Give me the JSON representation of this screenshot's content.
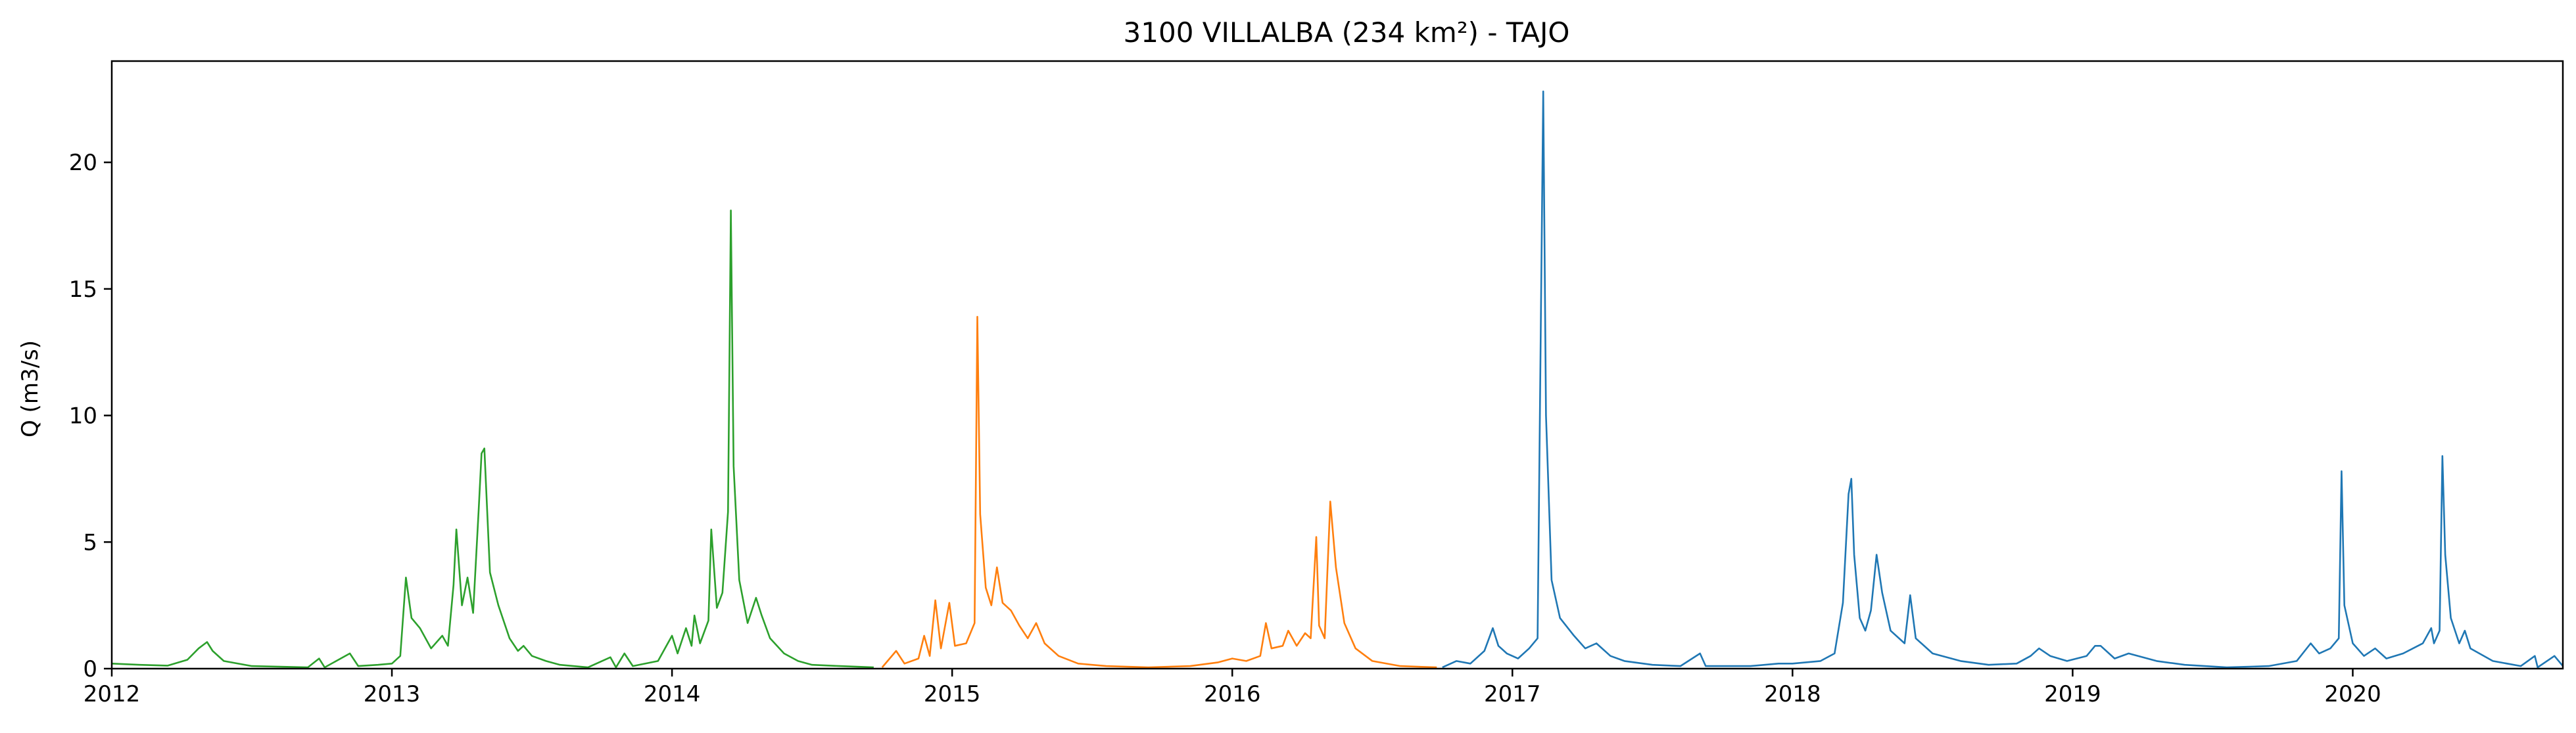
{
  "chart_data": {
    "type": "line",
    "title": "3100 VILLALBA (234 km²) - TAJO",
    "xlabel": "",
    "ylabel": "Q (m3/s)",
    "xlim": [
      2012.0,
      2020.75
    ],
    "ylim": [
      0,
      24
    ],
    "x_ticks": [
      2012,
      2013,
      2014,
      2015,
      2016,
      2017,
      2018,
      2019,
      2020
    ],
    "x_tick_labels": [
      "2012",
      "2013",
      "2014",
      "2015",
      "2016",
      "2017",
      "2018",
      "2019",
      "2020"
    ],
    "y_ticks": [
      0,
      5,
      10,
      15,
      20
    ],
    "y_tick_labels": [
      "0",
      "5",
      "10",
      "15",
      "20"
    ],
    "grid": false,
    "series": [
      {
        "color": "#2ca02c",
        "points": [
          [
            2012.0,
            0.2
          ],
          [
            2012.1,
            0.15
          ],
          [
            2012.2,
            0.12
          ],
          [
            2012.27,
            0.35
          ],
          [
            2012.31,
            0.8
          ],
          [
            2012.34,
            1.05
          ],
          [
            2012.36,
            0.7
          ],
          [
            2012.4,
            0.3
          ],
          [
            2012.5,
            0.1
          ],
          [
            2012.7,
            0.05
          ],
          [
            2012.74,
            0.4
          ],
          [
            2012.76,
            0.05
          ],
          [
            2012.85,
            0.6
          ],
          [
            2012.88,
            0.1
          ],
          [
            2012.95,
            0.15
          ],
          [
            2013.0,
            0.2
          ],
          [
            2013.03,
            0.5
          ],
          [
            2013.05,
            3.6
          ],
          [
            2013.07,
            2.0
          ],
          [
            2013.1,
            1.6
          ],
          [
            2013.14,
            0.8
          ],
          [
            2013.18,
            1.3
          ],
          [
            2013.2,
            0.9
          ],
          [
            2013.22,
            3.3
          ],
          [
            2013.23,
            5.5
          ],
          [
            2013.25,
            2.5
          ],
          [
            2013.27,
            3.6
          ],
          [
            2013.29,
            2.2
          ],
          [
            2013.31,
            6.3
          ],
          [
            2013.32,
            8.5
          ],
          [
            2013.33,
            8.7
          ],
          [
            2013.35,
            3.8
          ],
          [
            2013.38,
            2.5
          ],
          [
            2013.42,
            1.2
          ],
          [
            2013.45,
            0.7
          ],
          [
            2013.47,
            0.9
          ],
          [
            2013.5,
            0.5
          ],
          [
            2013.55,
            0.3
          ],
          [
            2013.6,
            0.15
          ],
          [
            2013.7,
            0.05
          ],
          [
            2013.78,
            0.45
          ],
          [
            2013.8,
            0.05
          ],
          [
            2013.83,
            0.6
          ],
          [
            2013.86,
            0.1
          ],
          [
            2013.95,
            0.3
          ],
          [
            2014.0,
            1.3
          ],
          [
            2014.02,
            0.6
          ],
          [
            2014.05,
            1.6
          ],
          [
            2014.07,
            0.9
          ],
          [
            2014.08,
            2.1
          ],
          [
            2014.1,
            1.0
          ],
          [
            2014.13,
            1.9
          ],
          [
            2014.14,
            5.5
          ],
          [
            2014.16,
            2.4
          ],
          [
            2014.18,
            3.0
          ],
          [
            2014.2,
            6.2
          ],
          [
            2014.21,
            18.1
          ],
          [
            2014.22,
            8.0
          ],
          [
            2014.24,
            3.5
          ],
          [
            2014.27,
            1.8
          ],
          [
            2014.3,
            2.8
          ],
          [
            2014.32,
            2.1
          ],
          [
            2014.35,
            1.2
          ],
          [
            2014.4,
            0.6
          ],
          [
            2014.45,
            0.3
          ],
          [
            2014.5,
            0.15
          ],
          [
            2014.6,
            0.1
          ],
          [
            2014.72,
            0.05
          ]
        ]
      },
      {
        "color": "#ff7f0e",
        "points": [
          [
            2014.75,
            0.05
          ],
          [
            2014.8,
            0.7
          ],
          [
            2014.83,
            0.2
          ],
          [
            2014.88,
            0.4
          ],
          [
            2014.9,
            1.3
          ],
          [
            2014.92,
            0.5
          ],
          [
            2014.94,
            2.7
          ],
          [
            2014.96,
            0.8
          ],
          [
            2014.99,
            2.6
          ],
          [
            2015.01,
            0.9
          ],
          [
            2015.05,
            1.0
          ],
          [
            2015.08,
            1.8
          ],
          [
            2015.09,
            13.9
          ],
          [
            2015.1,
            6.1
          ],
          [
            2015.12,
            3.2
          ],
          [
            2015.14,
            2.5
          ],
          [
            2015.16,
            4.0
          ],
          [
            2015.18,
            2.6
          ],
          [
            2015.21,
            2.3
          ],
          [
            2015.24,
            1.7
          ],
          [
            2015.27,
            1.2
          ],
          [
            2015.3,
            1.8
          ],
          [
            2015.33,
            1.0
          ],
          [
            2015.38,
            0.5
          ],
          [
            2015.45,
            0.2
          ],
          [
            2015.55,
            0.1
          ],
          [
            2015.7,
            0.05
          ],
          [
            2015.85,
            0.1
          ],
          [
            2015.95,
            0.25
          ],
          [
            2016.0,
            0.4
          ],
          [
            2016.05,
            0.3
          ],
          [
            2016.1,
            0.5
          ],
          [
            2016.12,
            1.8
          ],
          [
            2016.14,
            0.8
          ],
          [
            2016.18,
            0.9
          ],
          [
            2016.2,
            1.5
          ],
          [
            2016.23,
            0.9
          ],
          [
            2016.26,
            1.4
          ],
          [
            2016.28,
            1.2
          ],
          [
            2016.3,
            5.2
          ],
          [
            2016.31,
            1.7
          ],
          [
            2016.33,
            1.2
          ],
          [
            2016.35,
            6.6
          ],
          [
            2016.37,
            4.0
          ],
          [
            2016.4,
            1.8
          ],
          [
            2016.44,
            0.8
          ],
          [
            2016.5,
            0.3
          ],
          [
            2016.6,
            0.1
          ],
          [
            2016.73,
            0.05
          ]
        ]
      },
      {
        "color": "#1f77b4",
        "points": [
          [
            2016.75,
            0.05
          ],
          [
            2016.8,
            0.3
          ],
          [
            2016.85,
            0.2
          ],
          [
            2016.9,
            0.7
          ],
          [
            2016.93,
            1.6
          ],
          [
            2016.95,
            0.9
          ],
          [
            2016.98,
            0.6
          ],
          [
            2017.02,
            0.4
          ],
          [
            2017.06,
            0.8
          ],
          [
            2017.09,
            1.2
          ],
          [
            2017.11,
            22.8
          ],
          [
            2017.12,
            10.0
          ],
          [
            2017.14,
            3.5
          ],
          [
            2017.17,
            2.0
          ],
          [
            2017.22,
            1.3
          ],
          [
            2017.26,
            0.8
          ],
          [
            2017.3,
            1.0
          ],
          [
            2017.35,
            0.5
          ],
          [
            2017.4,
            0.3
          ],
          [
            2017.5,
            0.15
          ],
          [
            2017.6,
            0.1
          ],
          [
            2017.67,
            0.6
          ],
          [
            2017.69,
            0.1
          ],
          [
            2017.85,
            0.1
          ],
          [
            2017.95,
            0.2
          ],
          [
            2018.0,
            0.2
          ],
          [
            2018.1,
            0.3
          ],
          [
            2018.15,
            0.6
          ],
          [
            2018.18,
            2.6
          ],
          [
            2018.2,
            6.9
          ],
          [
            2018.21,
            7.5
          ],
          [
            2018.22,
            4.5
          ],
          [
            2018.24,
            2.0
          ],
          [
            2018.26,
            1.5
          ],
          [
            2018.28,
            2.3
          ],
          [
            2018.3,
            4.5
          ],
          [
            2018.32,
            3.0
          ],
          [
            2018.35,
            1.5
          ],
          [
            2018.4,
            1.0
          ],
          [
            2018.42,
            2.9
          ],
          [
            2018.44,
            1.2
          ],
          [
            2018.5,
            0.6
          ],
          [
            2018.6,
            0.3
          ],
          [
            2018.7,
            0.15
          ],
          [
            2018.8,
            0.2
          ],
          [
            2018.85,
            0.5
          ],
          [
            2018.88,
            0.8
          ],
          [
            2018.92,
            0.5
          ],
          [
            2018.98,
            0.3
          ],
          [
            2019.05,
            0.5
          ],
          [
            2019.08,
            0.9
          ],
          [
            2019.1,
            0.9
          ],
          [
            2019.15,
            0.4
          ],
          [
            2019.2,
            0.6
          ],
          [
            2019.3,
            0.3
          ],
          [
            2019.4,
            0.15
          ],
          [
            2019.55,
            0.05
          ],
          [
            2019.7,
            0.1
          ],
          [
            2019.8,
            0.3
          ],
          [
            2019.85,
            1.0
          ],
          [
            2019.88,
            0.6
          ],
          [
            2019.92,
            0.8
          ],
          [
            2019.95,
            1.2
          ],
          [
            2019.96,
            7.8
          ],
          [
            2019.97,
            2.5
          ],
          [
            2020.0,
            1.0
          ],
          [
            2020.04,
            0.5
          ],
          [
            2020.08,
            0.8
          ],
          [
            2020.12,
            0.4
          ],
          [
            2020.18,
            0.6
          ],
          [
            2020.25,
            1.0
          ],
          [
            2020.28,
            1.6
          ],
          [
            2020.29,
            1.0
          ],
          [
            2020.31,
            1.5
          ],
          [
            2020.32,
            8.4
          ],
          [
            2020.33,
            4.5
          ],
          [
            2020.35,
            2.0
          ],
          [
            2020.38,
            1.0
          ],
          [
            2020.4,
            1.5
          ],
          [
            2020.42,
            0.8
          ],
          [
            2020.5,
            0.3
          ],
          [
            2020.6,
            0.1
          ],
          [
            2020.65,
            0.5
          ],
          [
            2020.66,
            0.05
          ],
          [
            2020.72,
            0.5
          ],
          [
            2020.75,
            0.1
          ]
        ]
      }
    ]
  }
}
